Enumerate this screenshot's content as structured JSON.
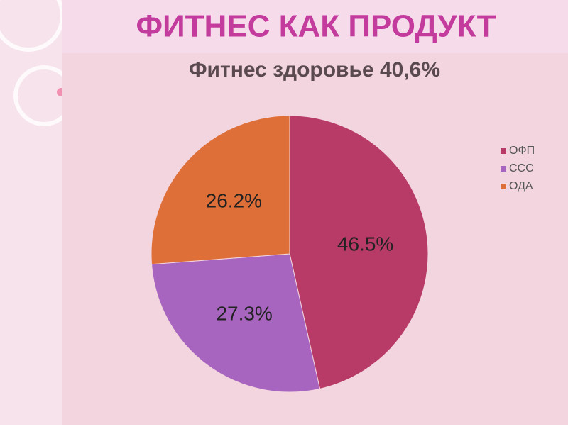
{
  "slide": {
    "title": "ФИТНЕС КАК ПРОДУКТ"
  },
  "chart_data": {
    "type": "pie",
    "title": "Фитнес здоровье 40,6%",
    "categories": [
      "ОФП",
      "ССС",
      "ОДА"
    ],
    "values": [
      46.5,
      27.3,
      26.2
    ],
    "value_labels": [
      "46.5%",
      "27.3%",
      "26.2%"
    ],
    "colors": [
      "#b83a66",
      "#a865bf",
      "#df6f38"
    ],
    "legend": "right"
  }
}
